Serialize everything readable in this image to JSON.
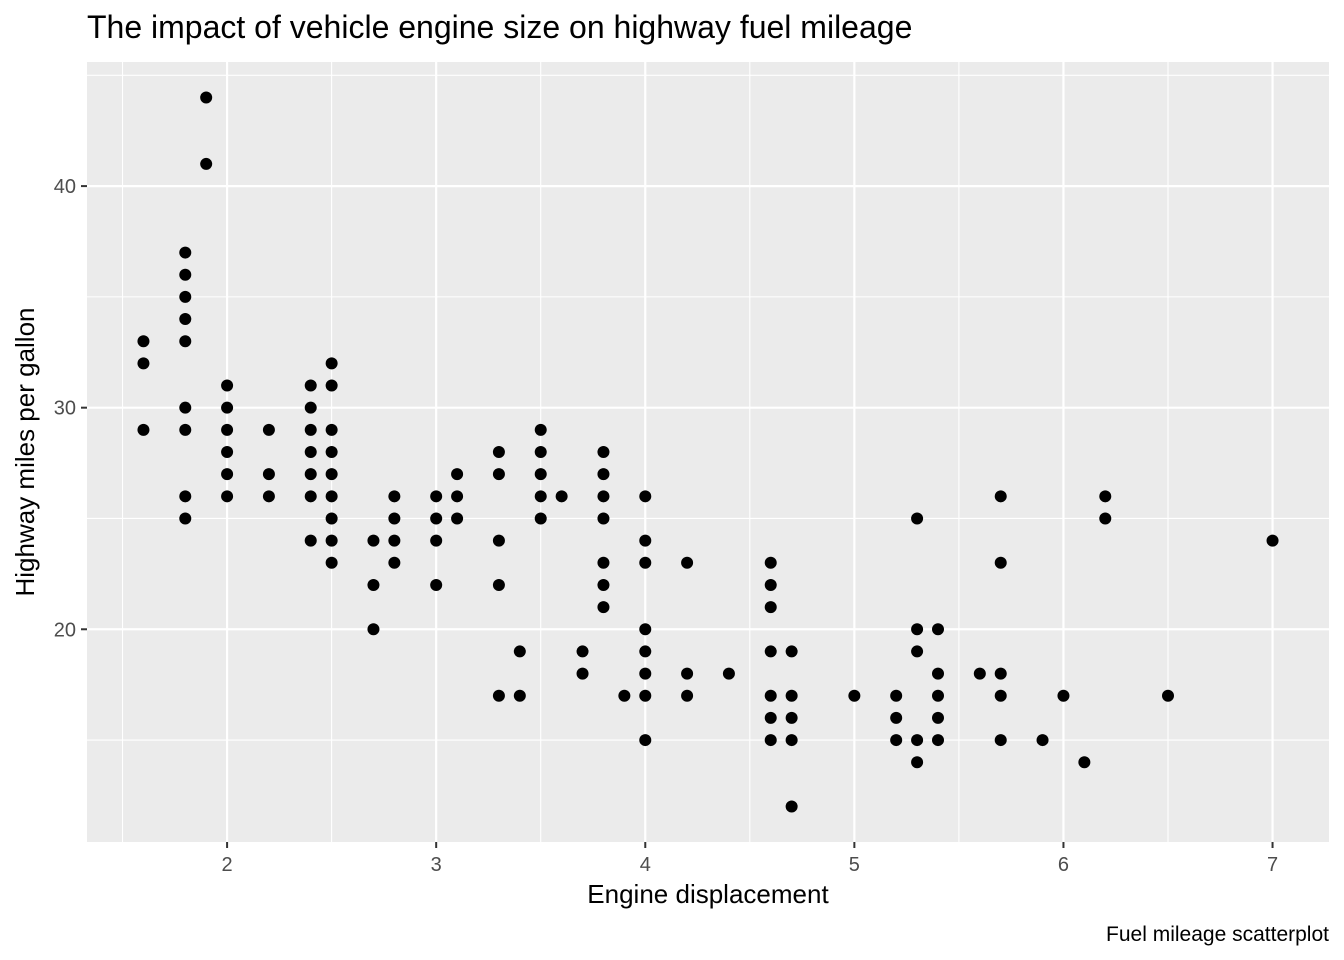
{
  "chart_data": {
    "type": "scatter",
    "title": "The impact of vehicle engine size on highway fuel mileage",
    "xlabel": "Engine displacement",
    "ylabel": "Highway miles per gallon",
    "caption": "Fuel mileage scatterplot",
    "xlim": [
      1.33,
      7.27
    ],
    "ylim": [
      10.4,
      45.6
    ],
    "x_ticks": [
      "2",
      "3",
      "4",
      "5",
      "6",
      "7"
    ],
    "y_ticks": [
      "20",
      "30",
      "40"
    ],
    "x_tick_values": [
      2,
      3,
      4,
      5,
      6,
      7
    ],
    "y_tick_values": [
      20,
      30,
      40
    ],
    "x_minor_values": [
      1.5,
      2.5,
      3.5,
      4.5,
      5.5,
      6.5
    ],
    "y_minor_values": [
      15,
      25,
      35,
      45
    ],
    "grid": true,
    "colors": {
      "panel": "#ebebeb",
      "grid": "#ffffff",
      "point": "#000000",
      "tick_text": "#4d4d4d",
      "tick_mark": "#333333"
    },
    "points": [
      [
        1.6,
        33
      ],
      [
        1.6,
        32
      ],
      [
        1.6,
        29
      ],
      [
        1.8,
        37
      ],
      [
        1.8,
        36
      ],
      [
        1.8,
        35
      ],
      [
        1.8,
        34
      ],
      [
        1.8,
        33
      ],
      [
        1.8,
        30
      ],
      [
        1.8,
        29
      ],
      [
        1.8,
        26
      ],
      [
        1.8,
        25
      ],
      [
        1.9,
        44
      ],
      [
        1.9,
        41
      ],
      [
        2.0,
        31
      ],
      [
        2.0,
        30
      ],
      [
        2.0,
        29
      ],
      [
        2.0,
        28
      ],
      [
        2.0,
        27
      ],
      [
        2.0,
        26
      ],
      [
        2.2,
        29
      ],
      [
        2.2,
        27
      ],
      [
        2.2,
        26
      ],
      [
        2.4,
        31
      ],
      [
        2.4,
        30
      ],
      [
        2.4,
        29
      ],
      [
        2.4,
        28
      ],
      [
        2.4,
        27
      ],
      [
        2.4,
        26
      ],
      [
        2.4,
        24
      ],
      [
        2.5,
        32
      ],
      [
        2.5,
        31
      ],
      [
        2.5,
        29
      ],
      [
        2.5,
        28
      ],
      [
        2.5,
        27
      ],
      [
        2.5,
        26
      ],
      [
        2.5,
        25
      ],
      [
        2.5,
        24
      ],
      [
        2.5,
        23
      ],
      [
        2.7,
        24
      ],
      [
        2.7,
        22
      ],
      [
        2.7,
        20
      ],
      [
        2.8,
        26
      ],
      [
        2.8,
        25
      ],
      [
        2.8,
        24
      ],
      [
        2.8,
        23
      ],
      [
        3.0,
        26
      ],
      [
        3.0,
        25
      ],
      [
        3.0,
        24
      ],
      [
        3.0,
        22
      ],
      [
        3.1,
        27
      ],
      [
        3.1,
        26
      ],
      [
        3.1,
        25
      ],
      [
        3.3,
        28
      ],
      [
        3.3,
        27
      ],
      [
        3.3,
        24
      ],
      [
        3.3,
        22
      ],
      [
        3.3,
        17
      ],
      [
        3.4,
        19
      ],
      [
        3.4,
        17
      ],
      [
        3.5,
        29
      ],
      [
        3.5,
        28
      ],
      [
        3.5,
        27
      ],
      [
        3.5,
        26
      ],
      [
        3.5,
        25
      ],
      [
        3.6,
        26
      ],
      [
        3.7,
        19
      ],
      [
        3.7,
        18
      ],
      [
        3.8,
        28
      ],
      [
        3.8,
        27
      ],
      [
        3.8,
        26
      ],
      [
        3.8,
        25
      ],
      [
        3.8,
        23
      ],
      [
        3.8,
        22
      ],
      [
        3.8,
        21
      ],
      [
        3.9,
        17
      ],
      [
        4.0,
        26
      ],
      [
        4.0,
        24
      ],
      [
        4.0,
        23
      ],
      [
        4.0,
        20
      ],
      [
        4.0,
        19
      ],
      [
        4.0,
        18
      ],
      [
        4.0,
        17
      ],
      [
        4.0,
        15
      ],
      [
        4.2,
        23
      ],
      [
        4.2,
        18
      ],
      [
        4.2,
        17
      ],
      [
        4.4,
        18
      ],
      [
        4.6,
        23
      ],
      [
        4.6,
        22
      ],
      [
        4.6,
        21
      ],
      [
        4.6,
        19
      ],
      [
        4.6,
        17
      ],
      [
        4.6,
        16
      ],
      [
        4.6,
        15
      ],
      [
        4.7,
        19
      ],
      [
        4.7,
        17
      ],
      [
        4.7,
        16
      ],
      [
        4.7,
        15
      ],
      [
        4.7,
        12
      ],
      [
        5.0,
        17
      ],
      [
        5.2,
        17
      ],
      [
        5.2,
        16
      ],
      [
        5.2,
        15
      ],
      [
        5.3,
        25
      ],
      [
        5.3,
        20
      ],
      [
        5.3,
        19
      ],
      [
        5.3,
        15
      ],
      [
        5.3,
        14
      ],
      [
        5.4,
        20
      ],
      [
        5.4,
        18
      ],
      [
        5.4,
        17
      ],
      [
        5.4,
        16
      ],
      [
        5.4,
        15
      ],
      [
        5.6,
        18
      ],
      [
        5.7,
        26
      ],
      [
        5.7,
        23
      ],
      [
        5.7,
        18
      ],
      [
        5.7,
        17
      ],
      [
        5.7,
        15
      ],
      [
        5.9,
        15
      ],
      [
        6.0,
        17
      ],
      [
        6.1,
        14
      ],
      [
        6.2,
        26
      ],
      [
        6.2,
        25
      ],
      [
        6.5,
        17
      ],
      [
        7.0,
        24
      ]
    ]
  }
}
